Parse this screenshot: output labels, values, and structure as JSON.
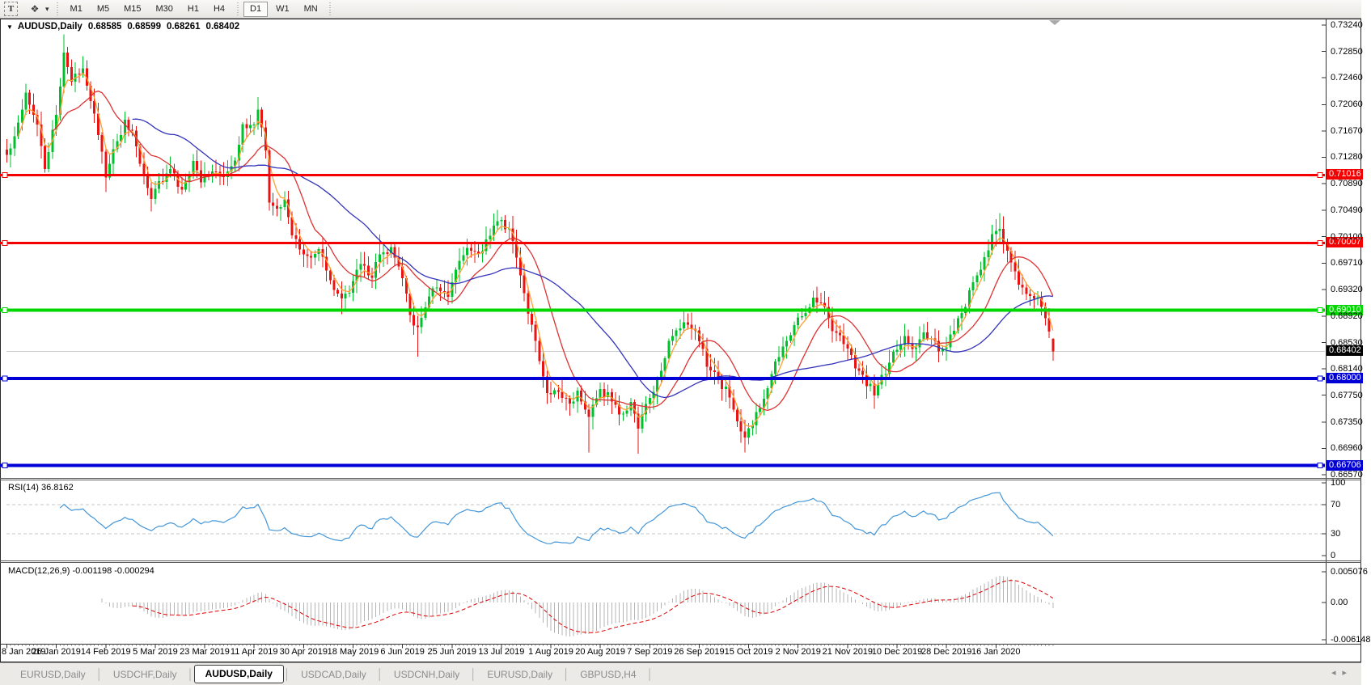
{
  "toolbar": {
    "text_tool": "T",
    "timeframes": [
      "M1",
      "M5",
      "M15",
      "M30",
      "H1",
      "H4",
      "D1",
      "W1",
      "MN"
    ],
    "active_timeframe": "D1"
  },
  "icons": {
    "text_tool": "T",
    "cursor_tool": "❖",
    "dropdown_arrow": "▾",
    "chart_symbol_dropdown": "▼",
    "shift_marker": "▼",
    "tab_scroll_left": "◂",
    "tab_scroll_right": "▸"
  },
  "title": {
    "symbol_period": "AUDUSD,Daily",
    "open": "0.68585",
    "high": "0.68599",
    "low": "0.68261",
    "close": "0.68402"
  },
  "price_axis": {
    "ticks": [
      "0.73240",
      "0.72850",
      "0.72460",
      "0.72060",
      "0.71670",
      "0.71280",
      "0.70890",
      "0.70490",
      "0.70100",
      "0.69710",
      "0.69320",
      "0.68920",
      "0.68530",
      "0.68140",
      "0.67750",
      "0.67350",
      "0.66960",
      "0.66570"
    ]
  },
  "hlines": [
    {
      "label": "0.71016",
      "value": 0.71016,
      "color": "#f40000",
      "width": 3
    },
    {
      "label": "0.70007",
      "value": 0.70007,
      "color": "#f40000",
      "width": 3
    },
    {
      "label": "0.69010",
      "value": 0.6901,
      "color": "#00d600",
      "width": 4
    },
    {
      "label": "0.68000",
      "value": 0.68,
      "color": "#0000d6",
      "width": 4
    },
    {
      "label": "0.66706",
      "value": 0.66706,
      "color": "#0000d6",
      "width": 4
    }
  ],
  "current_price": {
    "label": "0.68402",
    "value": 0.68402,
    "badge_bg": "#000000",
    "line_color": "#cbcbcb"
  },
  "rsi_panel": {
    "label": "RSI(14) 36.8162",
    "ticks": [
      {
        "label": "100",
        "value": 100
      },
      {
        "label": "70",
        "value": 70
      },
      {
        "label": "30",
        "value": 30
      },
      {
        "label": "0",
        "value": 0
      }
    ],
    "levels": [
      70,
      30
    ],
    "line_color": "#4496d8",
    "level_color": "#c6c6c6"
  },
  "macd_panel": {
    "label": "MACD(12,26,9) -0.001198 -0.000294",
    "ticks": [
      {
        "label": "0.005076",
        "value": 0.005076
      },
      {
        "label": "0.00",
        "value": 0
      },
      {
        "label": "-0.006148",
        "value": -0.006148
      }
    ],
    "histogram_color": "#b4b4b4",
    "signal_color": "#dd0000"
  },
  "date_axis": {
    "labels": [
      "8 Jan 2019",
      "26 Jan 2019",
      "14 Feb 2019",
      "5 Mar 2019",
      "23 Mar 2019",
      "11 Apr 2019",
      "30 Apr 2019",
      "18 May 2019",
      "6 Jun 2019",
      "25 Jun 2019",
      "13 Jul 2019",
      "1 Aug 2019",
      "20 Aug 2019",
      "7 Sep 2019",
      "26 Sep 2019",
      "15 Oct 2019",
      "2 Nov 2019",
      "21 Nov 2019",
      "10 Dec 2019",
      "28 Dec 2019",
      "16 Jan 2020"
    ]
  },
  "tabs": {
    "items": [
      "EURUSD,Daily",
      "USDCHF,Daily",
      "AUDUSD,Daily",
      "USDCAD,Daily",
      "USDCNH,Daily",
      "EURUSD,Daily",
      "GBPUSD,H4"
    ],
    "active_index": 2
  },
  "chart_data": {
    "type": "candlestick",
    "symbol": "AUDUSD",
    "period": "Daily",
    "bars": 276,
    "ylim": [
      0.6657,
      0.7324
    ],
    "bull_color": "#00c02e",
    "bear_color": "#e81414",
    "last_bar_ohlc": [
      0.68585,
      0.68599,
      0.68261,
      0.68402
    ],
    "close_waypoints": [
      [
        0,
        0.713
      ],
      [
        2,
        0.716
      ],
      [
        5,
        0.7225
      ],
      [
        8,
        0.718
      ],
      [
        10,
        0.711
      ],
      [
        13,
        0.719
      ],
      [
        15,
        0.7285
      ],
      [
        17,
        0.724
      ],
      [
        20,
        0.726
      ],
      [
        23,
        0.7195
      ],
      [
        26,
        0.71
      ],
      [
        28,
        0.7135
      ],
      [
        31,
        0.718
      ],
      [
        33,
        0.7165
      ],
      [
        35,
        0.712
      ],
      [
        38,
        0.7065
      ],
      [
        40,
        0.709
      ],
      [
        43,
        0.711
      ],
      [
        46,
        0.7075
      ],
      [
        49,
        0.712
      ],
      [
        51,
        0.7095
      ],
      [
        54,
        0.711
      ],
      [
        57,
        0.7095
      ],
      [
        60,
        0.712
      ],
      [
        62,
        0.718
      ],
      [
        64,
        0.717
      ],
      [
        66,
        0.7195
      ],
      [
        68,
        0.714
      ],
      [
        69,
        0.7065
      ],
      [
        71,
        0.705
      ],
      [
        73,
        0.707
      ],
      [
        75,
        0.701
      ],
      [
        77,
        0.6995
      ],
      [
        80,
        0.6975
      ],
      [
        82,
        0.699
      ],
      [
        85,
        0.6945
      ],
      [
        88,
        0.6915
      ],
      [
        90,
        0.693
      ],
      [
        93,
        0.697
      ],
      [
        96,
        0.695
      ],
      [
        98,
        0.6985
      ],
      [
        101,
        0.699
      ],
      [
        104,
        0.695
      ],
      [
        106,
        0.6895
      ],
      [
        108,
        0.687
      ],
      [
        111,
        0.6925
      ],
      [
        113,
        0.6935
      ],
      [
        116,
        0.692
      ],
      [
        118,
        0.696
      ],
      [
        121,
        0.6995
      ],
      [
        124,
        0.698
      ],
      [
        126,
        0.7005
      ],
      [
        129,
        0.7035
      ],
      [
        132,
        0.702
      ],
      [
        134,
        0.698
      ],
      [
        137,
        0.69
      ],
      [
        140,
        0.683
      ],
      [
        142,
        0.6775
      ],
      [
        145,
        0.6785
      ],
      [
        148,
        0.676
      ],
      [
        150,
        0.678
      ],
      [
        153,
        0.6745
      ],
      [
        156,
        0.678
      ],
      [
        158,
        0.6775
      ],
      [
        161,
        0.6745
      ],
      [
        164,
        0.676
      ],
      [
        166,
        0.673
      ],
      [
        169,
        0.677
      ],
      [
        172,
        0.681
      ],
      [
        174,
        0.6855
      ],
      [
        177,
        0.688
      ],
      [
        180,
        0.6875
      ],
      [
        182,
        0.686
      ],
      [
        184,
        0.682
      ],
      [
        187,
        0.6795
      ],
      [
        190,
        0.6775
      ],
      [
        192,
        0.6735
      ],
      [
        194,
        0.671
      ],
      [
        197,
        0.6745
      ],
      [
        199,
        0.6775
      ],
      [
        202,
        0.682
      ],
      [
        205,
        0.6855
      ],
      [
        207,
        0.688
      ],
      [
        210,
        0.69
      ],
      [
        212,
        0.692
      ],
      [
        215,
        0.6905
      ],
      [
        217,
        0.6875
      ],
      [
        220,
        0.6855
      ],
      [
        223,
        0.682
      ],
      [
        225,
        0.68
      ],
      [
        228,
        0.678
      ],
      [
        231,
        0.681
      ],
      [
        233,
        0.684
      ],
      [
        236,
        0.686
      ],
      [
        238,
        0.6845
      ],
      [
        241,
        0.6865
      ],
      [
        244,
        0.685
      ],
      [
        246,
        0.684
      ],
      [
        249,
        0.687
      ],
      [
        252,
        0.691
      ],
      [
        254,
        0.694
      ],
      [
        257,
        0.6975
      ],
      [
        259,
        0.701
      ],
      [
        261,
        0.702
      ],
      [
        263,
        0.699
      ],
      [
        266,
        0.694
      ],
      [
        268,
        0.693
      ],
      [
        271,
        0.692
      ],
      [
        274,
        0.6875
      ],
      [
        275,
        0.684
      ]
    ],
    "wick_events": [
      [
        15,
        "H",
        0.731
      ],
      [
        26,
        "L",
        0.7076
      ],
      [
        38,
        "L",
        0.7049
      ],
      [
        66,
        "H",
        0.7207
      ],
      [
        88,
        "L",
        0.6895
      ],
      [
        98,
        "H",
        0.7013
      ],
      [
        108,
        "L",
        0.6832
      ],
      [
        129,
        "H",
        0.7048
      ],
      [
        153,
        "L",
        0.669
      ],
      [
        166,
        "L",
        0.6688
      ],
      [
        194,
        "L",
        0.669
      ],
      [
        212,
        "H",
        0.693
      ],
      [
        228,
        "L",
        0.6755
      ],
      [
        261,
        "H",
        0.7045
      ],
      [
        275,
        "L",
        0.6826
      ]
    ],
    "moving_averages": [
      {
        "method": "ema",
        "period": 4,
        "color": "#ffa033"
      },
      {
        "method": "sma",
        "period": 13,
        "color": "#dd3333"
      },
      {
        "method": "sma",
        "period": 34,
        "color": "#3333bb"
      }
    ],
    "indicators": [
      {
        "name": "RSI",
        "period": 14,
        "last": 36.8162
      },
      {
        "name": "MACD",
        "fast": 12,
        "slow": 26,
        "signal": 9,
        "last_macd": -0.001198,
        "last_signal": -0.000294
      }
    ]
  }
}
